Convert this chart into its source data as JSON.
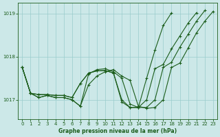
{
  "title": "Graphe pression niveau de la mer (hPa)",
  "bg_color": "#cce8e8",
  "grid_color": "#99cccc",
  "line_color": "#1a5c1a",
  "xlim": [
    -0.5,
    23.5
  ],
  "ylim": [
    1016.55,
    1019.25
  ],
  "yticks": [
    1017,
    1018,
    1019
  ],
  "xticks": [
    0,
    1,
    2,
    3,
    4,
    5,
    6,
    7,
    8,
    9,
    10,
    11,
    12,
    13,
    14,
    15,
    16,
    17,
    18,
    19,
    20,
    21,
    22,
    23
  ],
  "series": [
    {
      "x": [
        0,
        1,
        2,
        3,
        4,
        5,
        6,
        7,
        8,
        9,
        10,
        11,
        12,
        13,
        14,
        15,
        16,
        17,
        18,
        19,
        20,
        21,
        22,
        23
      ],
      "y": [
        1017.75,
        1017.15,
        1017.05,
        1017.1,
        1017.05,
        1017.05,
        1017.0,
        1016.85,
        1017.35,
        1017.55,
        1017.65,
        1017.7,
        1017.55,
        1017.45,
        1016.85,
        1016.8,
        1016.82,
        1017.0,
        1017.75,
        1017.85,
        1018.2,
        1018.55,
        1018.82,
        1019.05
      ]
    },
    {
      "x": [
        0,
        1,
        2,
        3,
        4,
        5,
        6,
        7,
        8,
        9,
        10,
        11,
        12,
        13,
        14,
        15,
        16,
        17,
        18,
        19,
        20,
        21,
        22
      ],
      "y": [
        1017.75,
        1017.15,
        1017.05,
        1017.1,
        1017.05,
        1017.05,
        1017.0,
        1016.85,
        1017.6,
        1017.7,
        1017.72,
        1017.65,
        1017.5,
        1016.9,
        1016.82,
        1016.82,
        1017.0,
        1017.75,
        1017.87,
        1018.22,
        1018.52,
        1018.82,
        1019.07
      ]
    },
    {
      "x": [
        0,
        1,
        2,
        3,
        4,
        5,
        6,
        7,
        8,
        9,
        10,
        11,
        12,
        13,
        14,
        15,
        16,
        17,
        18,
        19,
        20,
        21
      ],
      "y": [
        1017.75,
        1017.15,
        1017.12,
        1017.12,
        1017.1,
        1017.1,
        1017.05,
        1017.38,
        1017.62,
        1017.67,
        1017.68,
        1017.62,
        1016.95,
        1016.82,
        1016.82,
        1017.0,
        1017.72,
        1017.82,
        1018.18,
        1018.48,
        1018.78,
        1019.02
      ]
    },
    {
      "x": [
        0,
        1,
        2,
        3,
        4,
        5,
        6,
        7,
        8,
        9,
        10,
        11,
        12,
        13,
        14,
        15,
        16,
        17,
        18
      ],
      "y": [
        1017.75,
        1017.15,
        1017.12,
        1017.12,
        1017.1,
        1017.1,
        1017.05,
        1017.38,
        1017.62,
        1017.67,
        1017.68,
        1017.62,
        1017.0,
        1016.82,
        1016.82,
        1017.5,
        1018.15,
        1018.72,
        1019.02
      ]
    }
  ]
}
